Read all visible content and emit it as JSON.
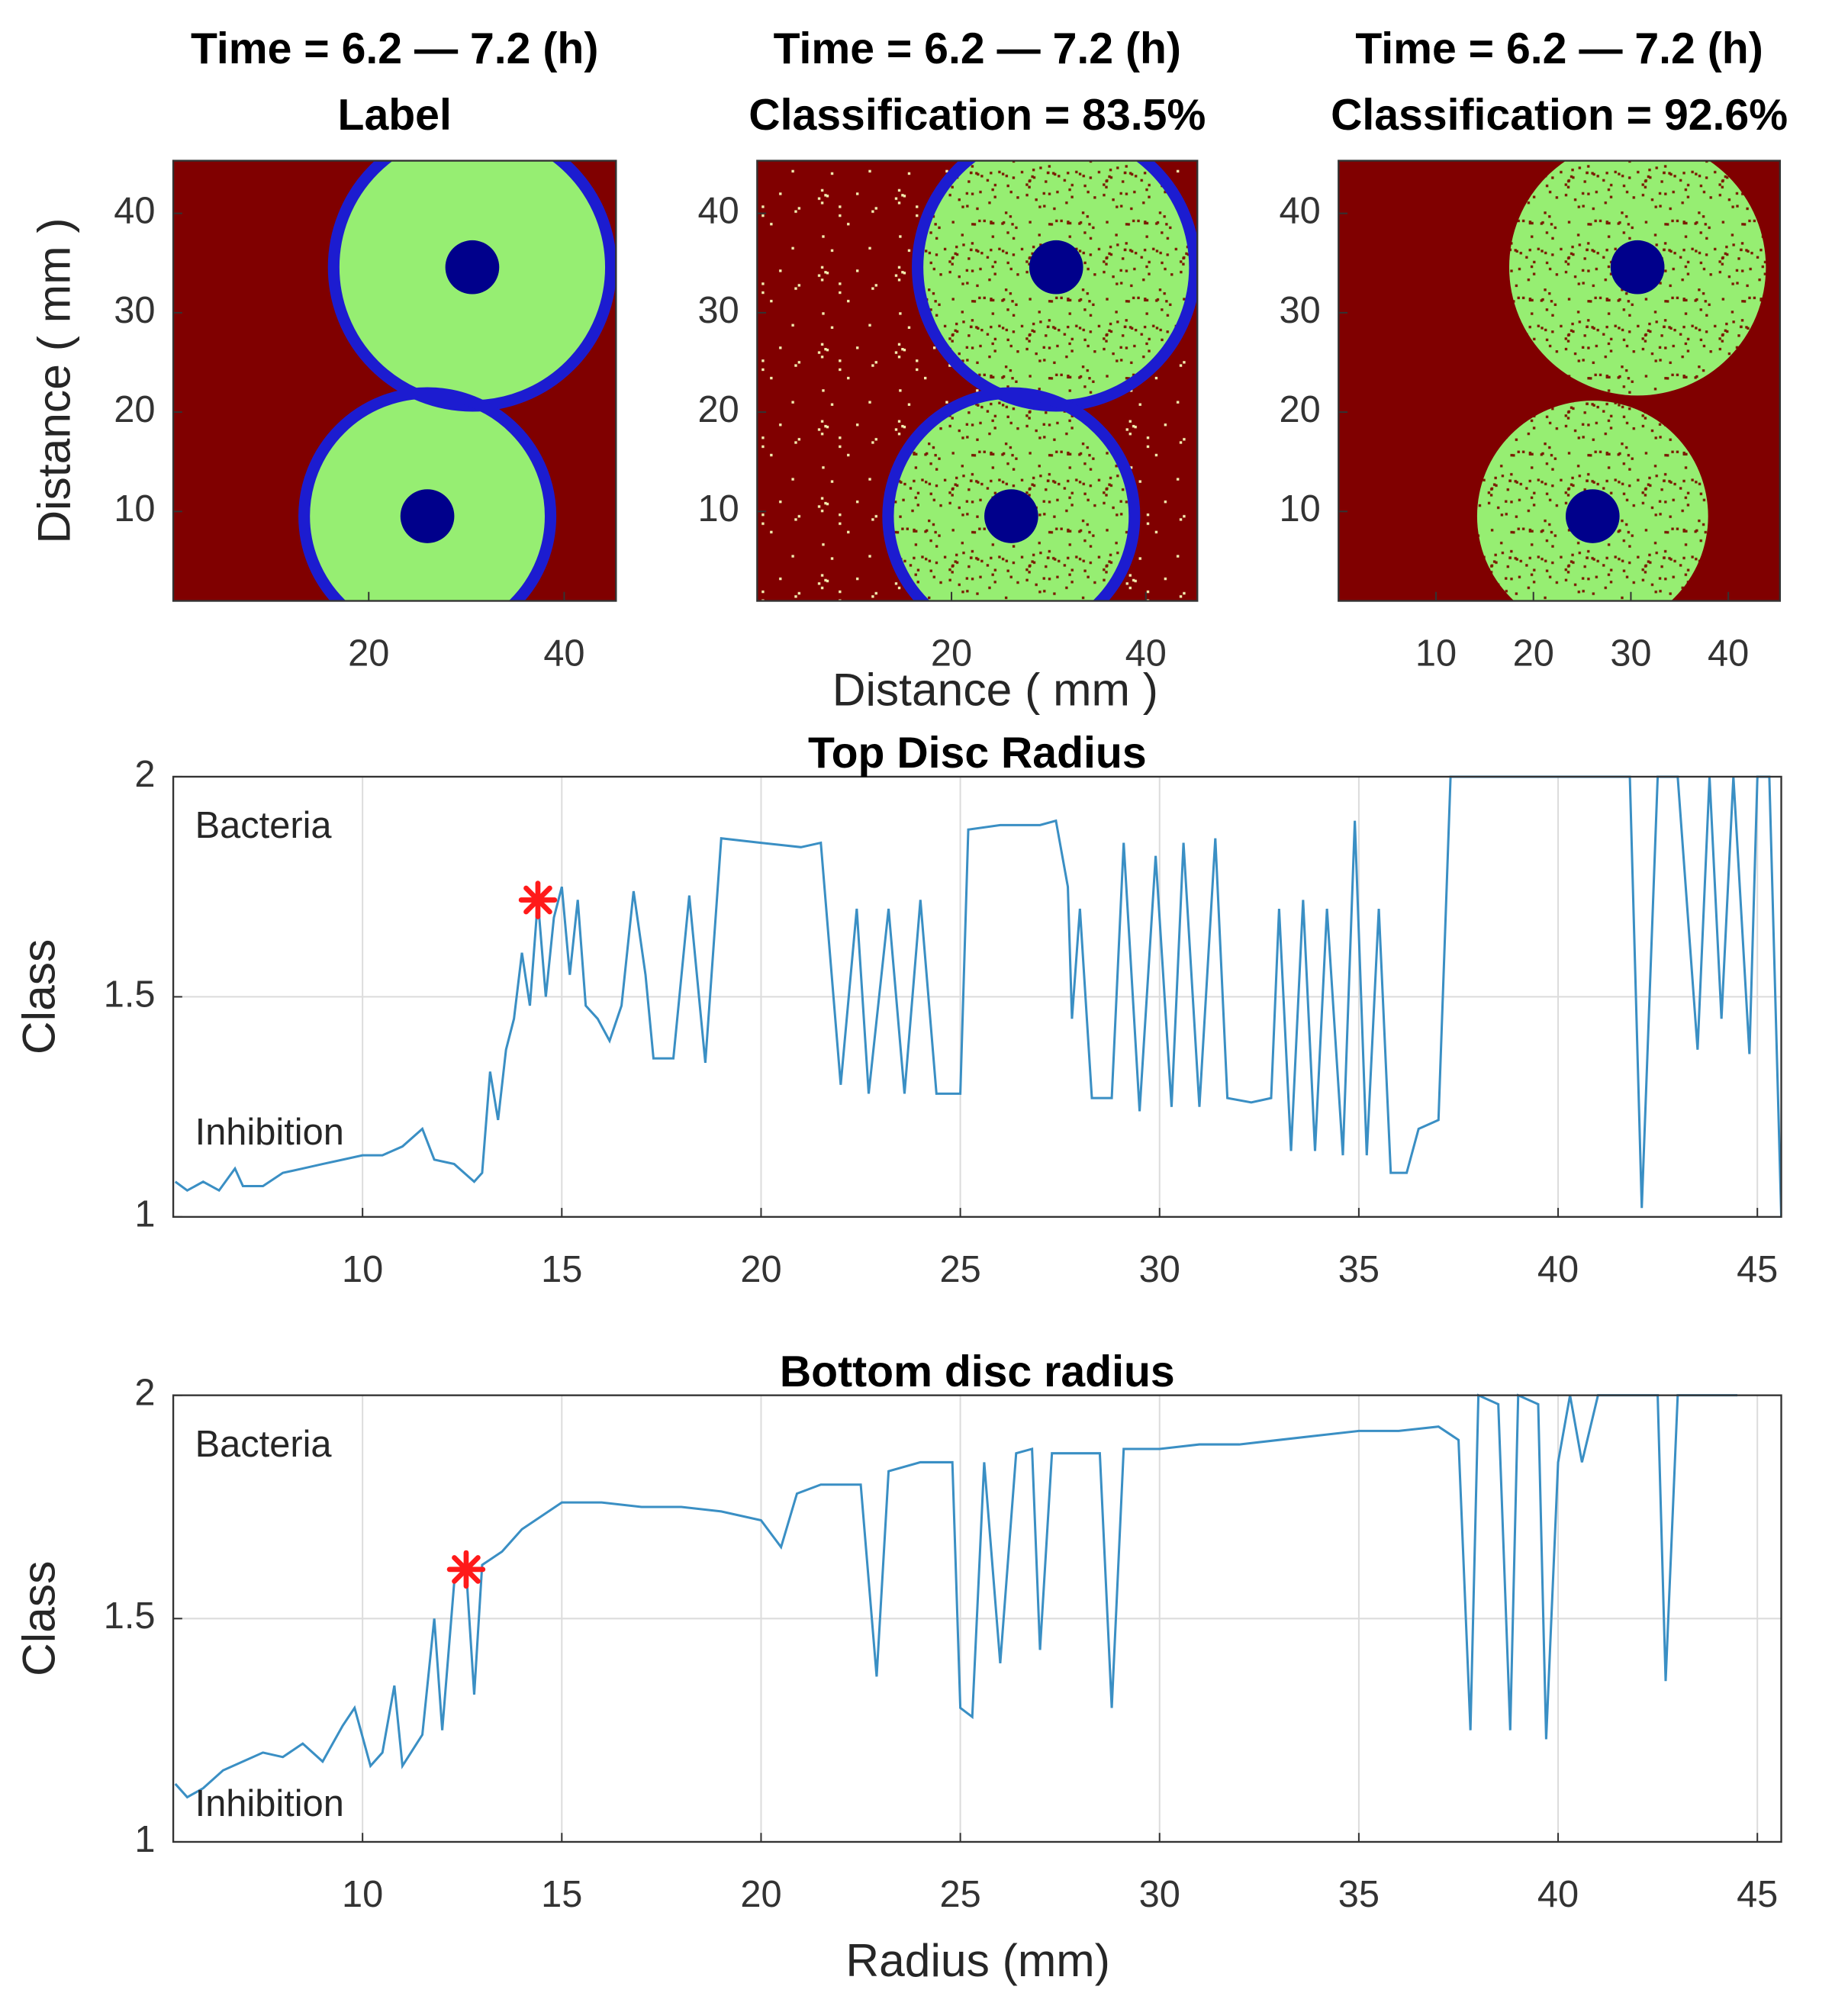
{
  "chart_data": [
    {
      "type": "image",
      "title": [
        "Time = 6.2 — 7.2 (h)",
        "Label"
      ],
      "ylabel": "Distance ( mm )",
      "xlim": [
        0,
        45.3
      ],
      "ylim": [
        1,
        45.3
      ],
      "xticks": [
        20,
        40
      ],
      "yticks": [
        10,
        20,
        30,
        40
      ]
    },
    {
      "type": "image",
      "title": [
        "Time = 6.2 — 7.2 (h)",
        "Classification = 83.5%"
      ],
      "xlabel": "Distance ( mm )",
      "xlim": [
        0,
        45.3
      ],
      "ylim": [
        1,
        45.3
      ],
      "xticks": [
        20,
        40
      ],
      "yticks": [
        10,
        20,
        30,
        40
      ]
    },
    {
      "type": "image",
      "title": [
        "Time = 6.2 — 7.2 (h)",
        "Classification = 92.6%"
      ],
      "xlim": [
        0,
        45.3
      ],
      "ylim": [
        1,
        45.3
      ],
      "xticks": [
        10,
        20,
        30,
        40
      ],
      "yticks": [
        10,
        20,
        30,
        40
      ]
    },
    {
      "type": "line",
      "title": "Top Disc Radius",
      "ylabel": "Class",
      "annotations": [
        "Bacteria",
        "Inhibition"
      ],
      "xlim": [
        5.25,
        45.6
      ],
      "ylim": [
        1,
        2
      ],
      "xticks": [
        10,
        15,
        20,
        25,
        30,
        35,
        40,
        45
      ],
      "yticks": [
        1,
        1.5,
        2
      ],
      "grid": true,
      "color": "#3a8fc4",
      "marker": {
        "x": 14.4,
        "y": 1.72,
        "color": "#ff1a1a"
      },
      "x": [
        5.3,
        5.6,
        6,
        6.4,
        6.8,
        7,
        7.5,
        8,
        8.5,
        9,
        9.5,
        10,
        10.5,
        11,
        11.5,
        11.8,
        12.3,
        12.8,
        13,
        13.2,
        13.4,
        13.6,
        13.8,
        14,
        14.2,
        14.4,
        14.6,
        14.8,
        15,
        15.2,
        15.4,
        15.6,
        15.9,
        16.2,
        16.5,
        16.8,
        17.1,
        17.3,
        17.8,
        18.2,
        18.6,
        19,
        20,
        21,
        21.5,
        22,
        22.4,
        22.7,
        23.2,
        23.6,
        24,
        24.4,
        25,
        25.2,
        26,
        27,
        27.4,
        27.7,
        27.8,
        28,
        28.3,
        28.8,
        29.1,
        29.5,
        29.9,
        30.3,
        30.6,
        31,
        31.4,
        31.7,
        32.3,
        32.8,
        33,
        33.3,
        33.6,
        33.9,
        34.2,
        34.6,
        34.9,
        35.2,
        35.5,
        35.8,
        36.2,
        36.5,
        37,
        37.3,
        38,
        40,
        41.8,
        42.1,
        42.5,
        43,
        43.5,
        43.8,
        44.1,
        44.4,
        44.8,
        45,
        45.3,
        45.6
      ],
      "values": [
        1.08,
        1.06,
        1.08,
        1.06,
        1.11,
        1.07,
        1.07,
        1.1,
        1.11,
        1.12,
        1.13,
        1.14,
        1.14,
        1.16,
        1.2,
        1.13,
        1.12,
        1.08,
        1.1,
        1.33,
        1.22,
        1.38,
        1.45,
        1.6,
        1.48,
        1.72,
        1.5,
        1.68,
        1.75,
        1.55,
        1.72,
        1.48,
        1.45,
        1.4,
        1.48,
        1.74,
        1.55,
        1.36,
        1.36,
        1.73,
        1.35,
        1.86,
        1.85,
        1.84,
        1.85,
        1.3,
        1.7,
        1.28,
        1.7,
        1.28,
        1.72,
        1.28,
        1.28,
        1.88,
        1.89,
        1.89,
        1.9,
        1.75,
        1.45,
        1.7,
        1.27,
        1.27,
        1.85,
        1.24,
        1.82,
        1.25,
        1.85,
        1.25,
        1.86,
        1.27,
        1.26,
        1.27,
        1.7,
        1.15,
        1.72,
        1.15,
        1.7,
        1.14,
        1.9,
        1.14,
        1.7,
        1.1,
        1.1,
        1.2,
        1.22,
        2,
        2,
        2,
        2,
        1.02,
        2,
        2,
        1.38,
        2,
        1.45,
        2,
        1.37,
        2,
        2,
        1
      ]
    },
    {
      "type": "line",
      "title": "Bottom disc radius",
      "ylabel": "Class",
      "xlabel": "Radius (mm)",
      "annotations": [
        "Bacteria",
        "Inhibition"
      ],
      "xlim": [
        5.25,
        45.6
      ],
      "ylim": [
        1,
        2
      ],
      "xticks": [
        10,
        15,
        20,
        25,
        30,
        35,
        40,
        45
      ],
      "yticks": [
        1,
        1.5,
        2
      ],
      "grid": true,
      "color": "#3a8fc4",
      "marker": {
        "x": 12.6,
        "y": 1.61,
        "color": "#ff1a1a"
      },
      "x": [
        5.3,
        5.6,
        6,
        6.5,
        7,
        7.5,
        8,
        8.5,
        9,
        9.5,
        9.8,
        10.2,
        10.5,
        10.8,
        11,
        11.5,
        11.8,
        12,
        12.3,
        12.6,
        12.8,
        13,
        13.5,
        14,
        14.5,
        15,
        16,
        17,
        18,
        19,
        20,
        20.5,
        20.9,
        21.5,
        22.5,
        22.9,
        23.2,
        24,
        24.8,
        25,
        25.3,
        25.6,
        26,
        26.4,
        26.8,
        27,
        27.3,
        28.5,
        28.8,
        29.1,
        30,
        31,
        32,
        33,
        34,
        35,
        36,
        37,
        37.5,
        37.8,
        38,
        38.5,
        38.8,
        39,
        39.5,
        39.7,
        40,
        40.3,
        40.6,
        41,
        42,
        42.5,
        42.7,
        43,
        44.5
      ],
      "values": [
        1.13,
        1.1,
        1.12,
        1.16,
        1.18,
        1.2,
        1.19,
        1.22,
        1.18,
        1.26,
        1.3,
        1.17,
        1.2,
        1.35,
        1.17,
        1.24,
        1.5,
        1.25,
        1.58,
        1.61,
        1.33,
        1.62,
        1.65,
        1.7,
        1.73,
        1.76,
        1.76,
        1.75,
        1.75,
        1.74,
        1.72,
        1.66,
        1.78,
        1.8,
        1.8,
        1.37,
        1.83,
        1.85,
        1.85,
        1.3,
        1.28,
        1.85,
        1.4,
        1.87,
        1.88,
        1.43,
        1.87,
        1.87,
        1.3,
        1.88,
        1.88,
        1.89,
        1.89,
        1.9,
        1.91,
        1.92,
        1.92,
        1.93,
        1.9,
        1.25,
        2,
        1.98,
        1.25,
        2,
        1.98,
        1.23,
        1.85,
        2,
        1.85,
        2,
        2,
        2,
        1.36,
        2,
        2
      ]
    }
  ]
}
